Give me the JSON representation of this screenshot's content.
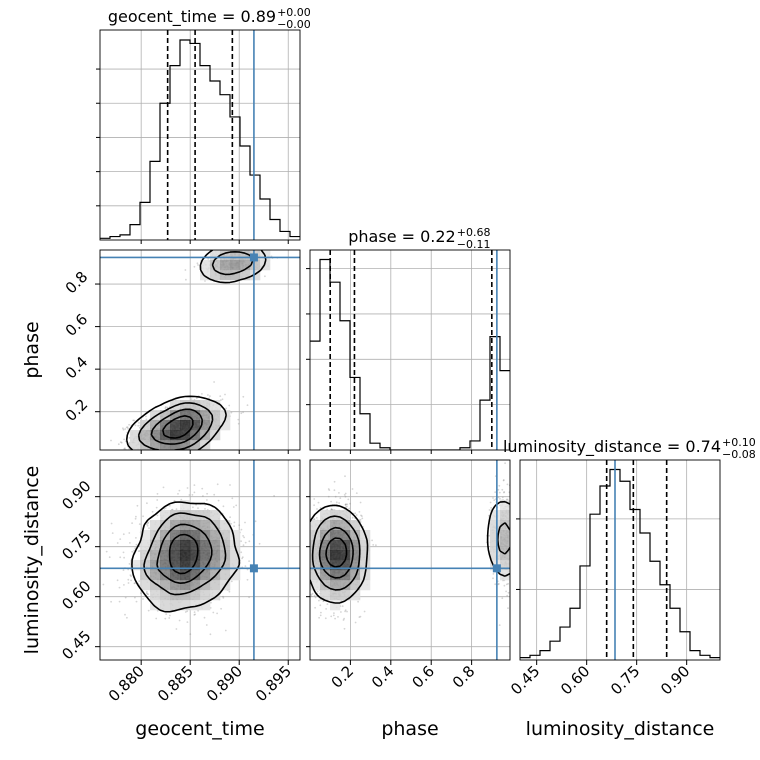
{
  "chart_data": {
    "type": "corner",
    "parameters": [
      "geocent_time",
      "phase",
      "luminosity_distance"
    ],
    "truths": [
      0.8915,
      0.925,
      0.685
    ],
    "grid": true,
    "panels": {
      "geocent_time": {
        "title_label": "geocent_time = 0.89",
        "title_sup": "+0.00",
        "title_sub": "−0.00",
        "xlim": [
          0.8758,
          0.8962
        ],
        "ticks": [
          0.88,
          0.885,
          0.89,
          0.895
        ],
        "tick_labels": [
          "0.880",
          "0.885",
          "0.890",
          "0.895"
        ],
        "axis_label": "geocent_time",
        "quantiles": [
          0.8827,
          0.8855,
          0.8893
        ],
        "hist_edges_start": 0.8758,
        "hist_bin_width": 0.00102,
        "hist_counts": [
          1,
          2,
          3,
          9,
          22,
          46,
          80,
          102,
          117,
          115,
          102,
          93,
          85,
          72,
          55,
          38,
          24,
          12,
          5,
          2
        ]
      },
      "phase": {
        "title_label": "phase = 0.22",
        "title_sup": "+0.68",
        "title_sub": "−0.11",
        "xlim": [
          0.0,
          0.99
        ],
        "ticks": [
          0.2,
          0.4,
          0.6,
          0.8
        ],
        "tick_labels": [
          "0.2",
          "0.4",
          "0.6",
          "0.8"
        ],
        "axis_label": "phase",
        "quantiles": [
          0.1,
          0.22,
          0.9
        ],
        "hist_edges_start": 0.0,
        "hist_bin_width": 0.0495,
        "hist_counts": [
          48,
          84,
          74,
          57,
          32,
          16,
          3,
          1,
          0,
          0,
          0,
          0,
          0,
          0,
          0,
          1,
          4,
          22,
          50,
          35
        ]
      },
      "luminosity_distance": {
        "title_label": "luminosity_distance = 0.74",
        "title_sup": "+0.10",
        "title_sub": "−0.08",
        "xlim": [
          0.4,
          1.0
        ],
        "ticks": [
          0.45,
          0.6,
          0.75,
          0.9
        ],
        "tick_labels": [
          "0.45",
          "0.60",
          "0.75",
          "0.90"
        ],
        "axis_label": "luminosity_distance",
        "quantiles": [
          0.66,
          0.74,
          0.84
        ],
        "hist_edges_start": 0.4,
        "hist_bin_width": 0.03,
        "hist_counts": [
          1,
          2,
          4,
          8,
          14,
          22,
          40,
          62,
          74,
          81,
          76,
          64,
          54,
          42,
          32,
          22,
          12,
          4,
          2,
          1
        ]
      }
    },
    "y_axes": {
      "phase": {
        "ylim": [
          0.02,
          0.96
        ],
        "ticks": [
          0.2,
          0.4,
          0.6,
          0.8
        ],
        "tick_labels": [
          "0.2",
          "0.4",
          "0.6",
          "0.8"
        ]
      },
      "luminosity_distance": {
        "ylim": [
          0.41,
          1.01
        ],
        "ticks": [
          0.45,
          0.6,
          0.75,
          0.9
        ],
        "tick_labels": [
          "0.45",
          "0.60",
          "0.75",
          "0.90"
        ]
      }
    },
    "posterior_clusters": [
      {
        "pair": [
          "geocent_time",
          "phase"
        ],
        "center": [
          0.8838,
          0.13
        ],
        "sd": [
          0.0022,
          0.055
        ],
        "rho": 0.45,
        "n": 1300
      },
      {
        "pair": [
          "geocent_time",
          "phase"
        ],
        "center": [
          0.8893,
          0.9
        ],
        "sd": [
          0.0016,
          0.03
        ],
        "rho": 0.3,
        "n": 420
      },
      {
        "pair": [
          "geocent_time",
          "luminosity_distance"
        ],
        "center": [
          0.8845,
          0.725
        ],
        "sd": [
          0.0025,
          0.07
        ],
        "rho": 0.1,
        "n": 1700
      },
      {
        "pair": [
          "phase",
          "luminosity_distance"
        ],
        "center": [
          0.13,
          0.73
        ],
        "sd": [
          0.06,
          0.07
        ],
        "rho": 0.0,
        "n": 1500
      },
      {
        "pair": [
          "phase",
          "luminosity_distance"
        ],
        "center": [
          0.96,
          0.78
        ],
        "sd": [
          0.03,
          0.075
        ],
        "rho": 0.0,
        "n": 420
      }
    ]
  }
}
